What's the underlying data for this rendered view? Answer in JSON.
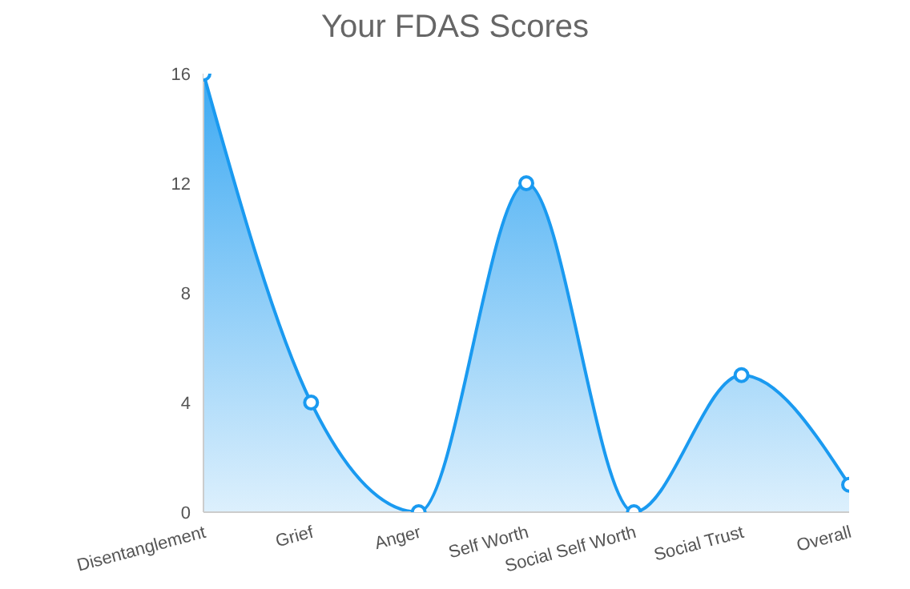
{
  "chart_data": {
    "type": "area",
    "title": "Your FDAS Scores",
    "categories": [
      "Disentanglement",
      "Grief",
      "Anger",
      "Self Worth",
      "Social Self Worth",
      "Social Trust",
      "Overall"
    ],
    "values": [
      16,
      4,
      0,
      12,
      0,
      5,
      1
    ],
    "color": "#1a9af0",
    "ylim": [
      0,
      16
    ],
    "yticks": [
      0,
      4,
      8,
      12,
      16
    ],
    "marker": "circle",
    "grid": false,
    "legend": false
  }
}
